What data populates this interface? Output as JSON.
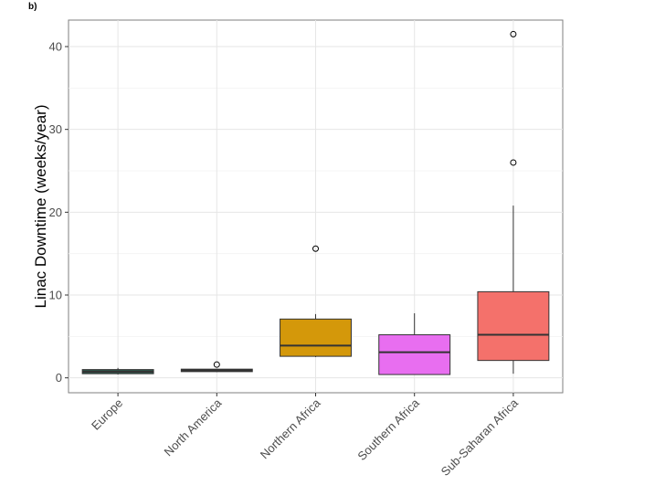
{
  "panel_label": "b)",
  "chart_data": {
    "type": "box",
    "title": "",
    "xlabel": "",
    "ylabel": "Linac Downtime (weeks/year)",
    "ylim": [
      -1.8,
      43.2
    ],
    "yticks": [
      0,
      10,
      20,
      30,
      40
    ],
    "grid": true,
    "legend": "none",
    "categories": [
      "Europe",
      "North America",
      "Northern Africa",
      "Southern Africa",
      "Sub-Saharan Africa"
    ],
    "boxes": [
      {
        "category": "Europe",
        "color": "#2e5a4e",
        "min": 0.4,
        "q1": 0.5,
        "median": 0.75,
        "q3": 1.0,
        "max": 1.2,
        "outliers": []
      },
      {
        "category": "North America",
        "color": "#3b86a6",
        "min": 0.7,
        "q1": 0.75,
        "median": 0.9,
        "q3": 1.05,
        "max": 1.1,
        "outliers": [
          1.6
        ]
      },
      {
        "category": "Northern Africa",
        "color": "#d4980a",
        "min": 2.5,
        "q1": 2.6,
        "median": 3.9,
        "q3": 7.1,
        "max": 7.7,
        "outliers": [
          15.6
        ]
      },
      {
        "category": "Southern Africa",
        "color": "#e86ef0",
        "min": 0.4,
        "q1": 0.4,
        "median": 3.1,
        "q3": 5.2,
        "max": 7.8,
        "outliers": []
      },
      {
        "category": "Sub-Saharan Africa",
        "color": "#f4716b",
        "min": 0.5,
        "q1": 2.1,
        "median": 5.2,
        "q3": 10.4,
        "max": 20.8,
        "outliers": [
          26.0,
          41.5
        ]
      }
    ]
  }
}
